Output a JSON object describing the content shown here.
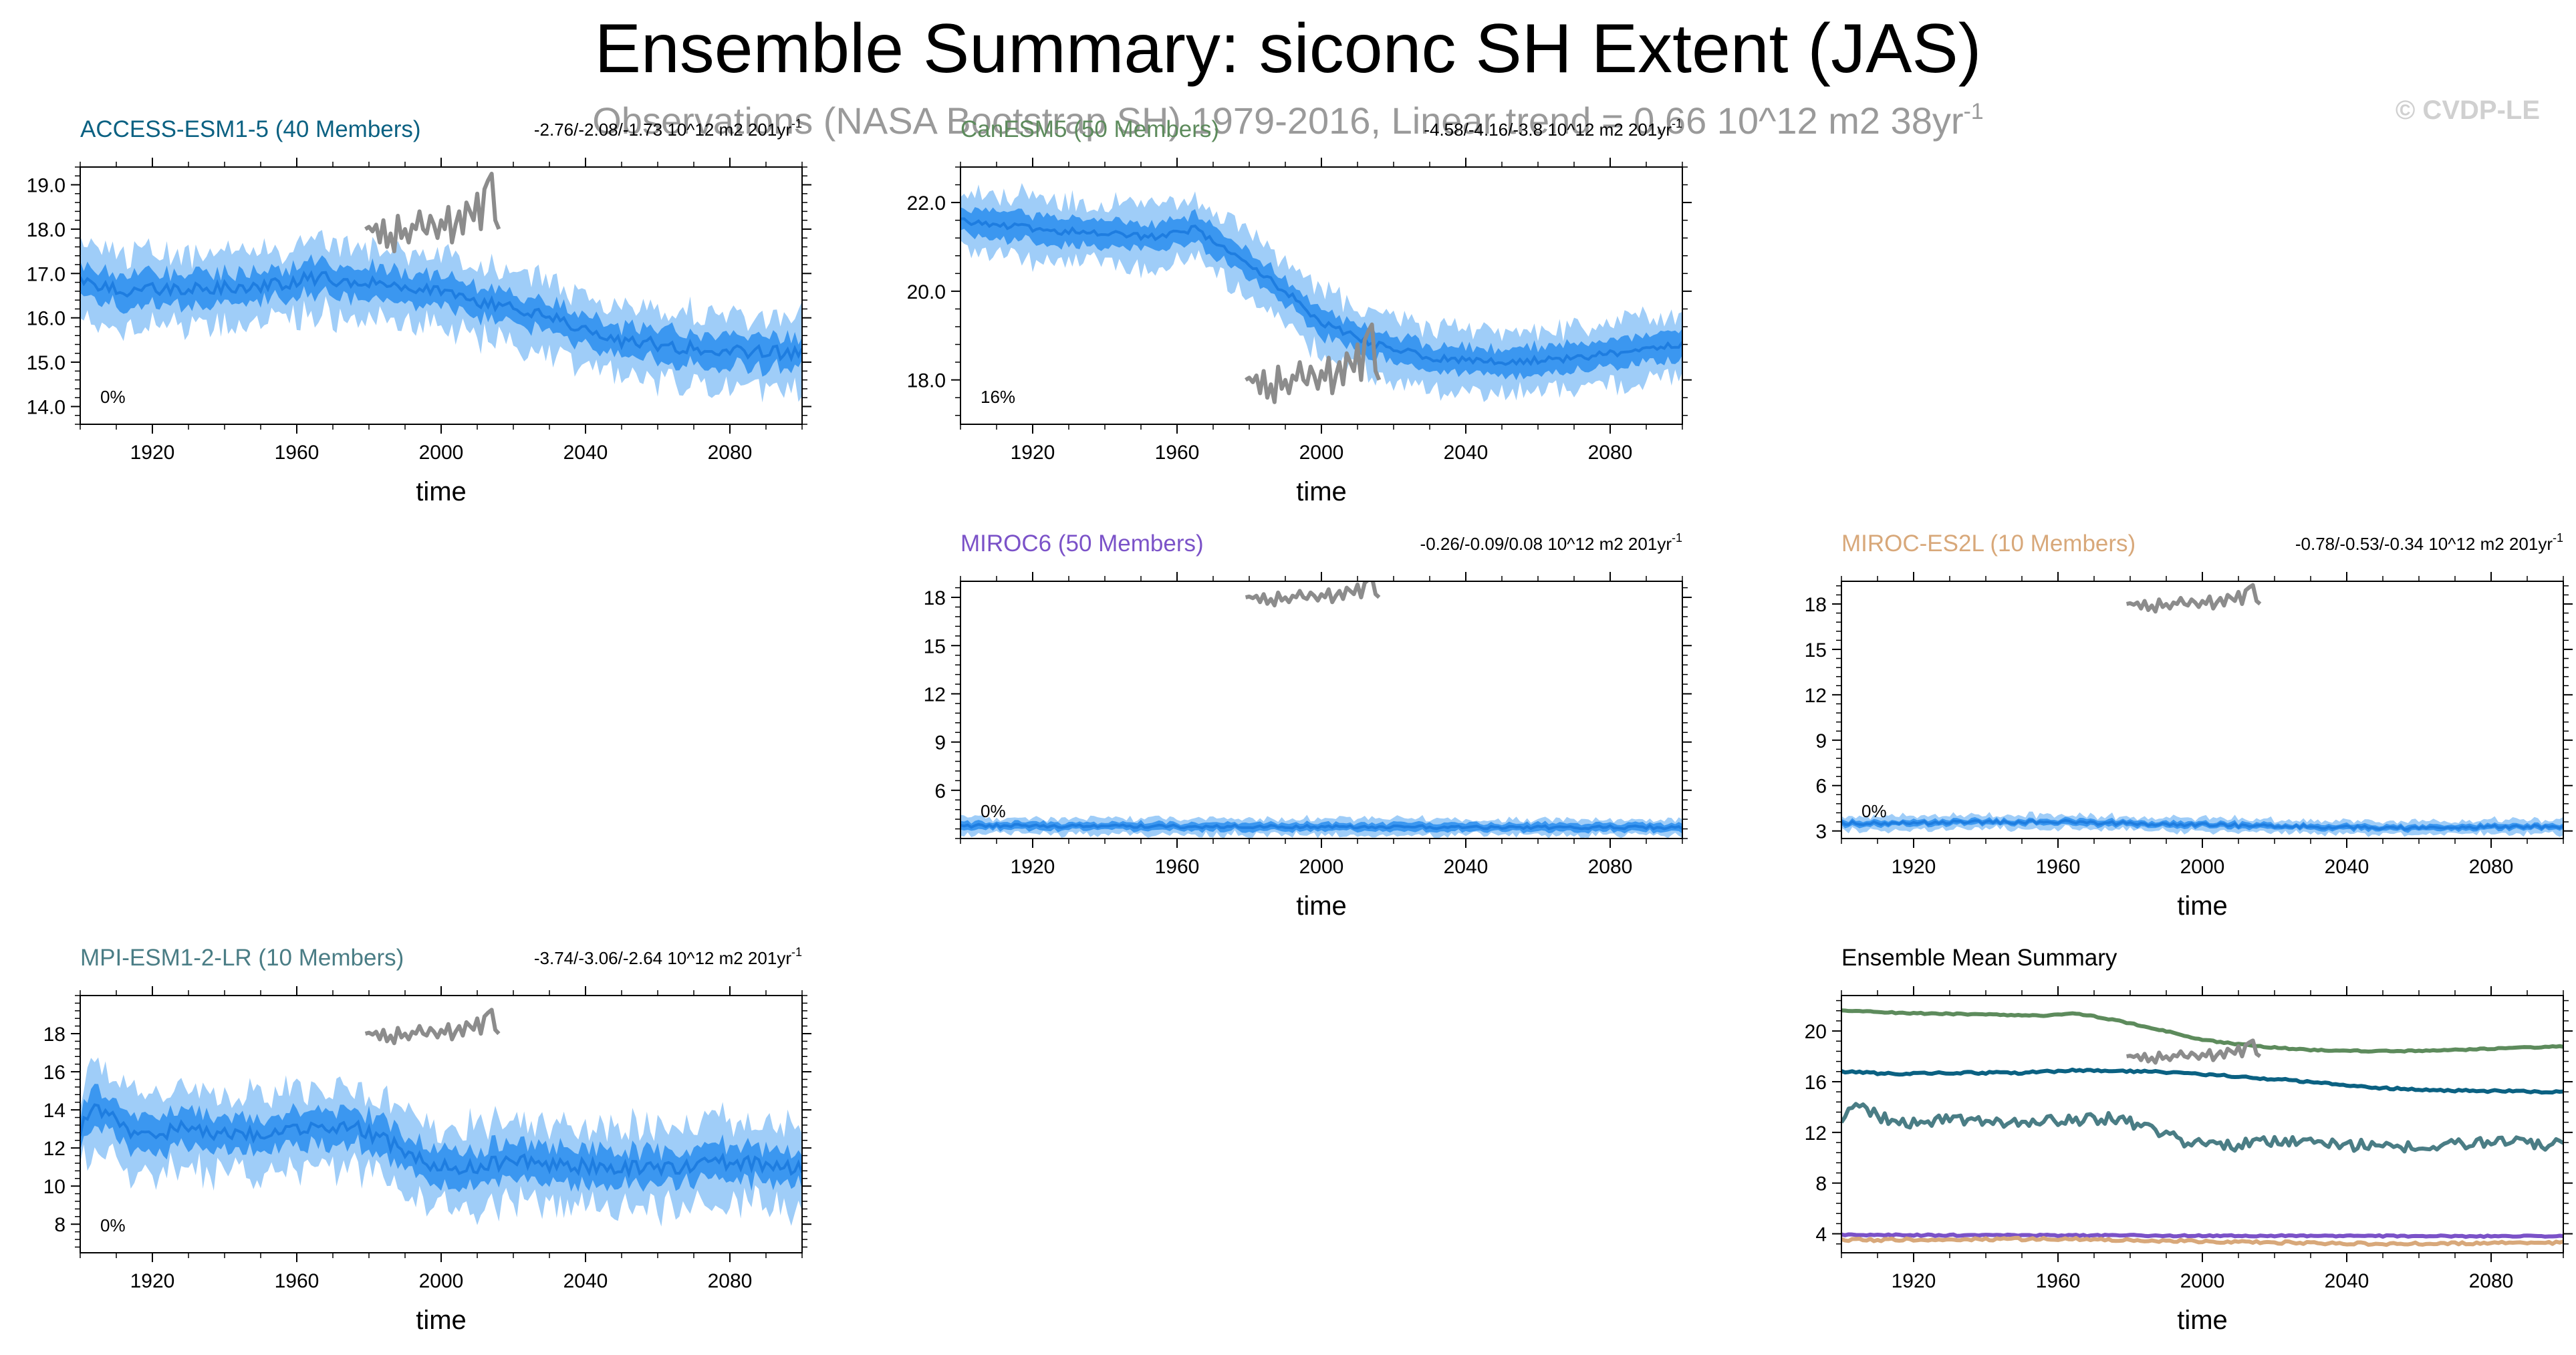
{
  "title": "Ensemble Summary: siconc SH Extent (JAS)",
  "subtitle": "Observations (NASA Bootstrap SH) 1979-2016, Linear trend = 0.66 10^12 m2 38yr",
  "subtitle_sup": "-1",
  "copyright": "© CVDP-LE",
  "colors": {
    "outer_band": "#9fcdf8",
    "inner_band": "#3b97f0",
    "mean_line": "#1e7de0",
    "obs": "#8c8c8c"
  },
  "chart_data": [
    {
      "id": "access",
      "type": "line",
      "title": "ACCESS-ESM1-5 (40 Members)",
      "title_color": "#0b6182",
      "trend_label": "-2.76/-2.08/-1.73 10^12 m2 201yr",
      "trend_sup": "-1",
      "percent_label": "0%",
      "xlabel": "time",
      "xlim": [
        1900,
        2100
      ],
      "xticks": [
        1920,
        1960,
        2000,
        2040,
        2080
      ],
      "xtick_labels": [
        "1920",
        "1960",
        "2000",
        "2040",
        "2080"
      ],
      "ylim": [
        13.6,
        19.4
      ],
      "yticks": [
        14,
        15,
        16,
        17,
        18,
        19
      ],
      "ytick_labels": [
        "14.0",
        "15.0",
        "16.0",
        "17.0",
        "18.0",
        "19.0"
      ],
      "mean_knots": [
        [
          1900,
          16.8
        ],
        [
          1915,
          16.6
        ],
        [
          1930,
          16.7
        ],
        [
          1950,
          16.7
        ],
        [
          1965,
          16.9
        ],
        [
          1985,
          16.8
        ],
        [
          2000,
          16.6
        ],
        [
          2015,
          16.3
        ],
        [
          2030,
          16.0
        ],
        [
          2050,
          15.5
        ],
        [
          2070,
          15.3
        ],
        [
          2100,
          15.2
        ]
      ],
      "noise_amp": 0.15,
      "inner_spread": 0.35,
      "outer_spread": 0.8,
      "obs": {
        "years": [
          1979,
          1980,
          1981,
          1982,
          1983,
          1984,
          1985,
          1986,
          1987,
          1988,
          1989,
          1990,
          1991,
          1992,
          1993,
          1994,
          1995,
          1996,
          1997,
          1998,
          1999,
          2000,
          2001,
          2002,
          2003,
          2004,
          2005,
          2006,
          2007,
          2008,
          2009,
          2010,
          2011,
          2012,
          2013,
          2014,
          2015,
          2016
        ],
        "values": [
          18.0,
          18.05,
          17.95,
          18.1,
          17.7,
          18.2,
          17.6,
          17.9,
          17.5,
          18.3,
          17.8,
          18.0,
          17.7,
          18.1,
          18.0,
          18.4,
          18.0,
          17.9,
          18.3,
          18.1,
          17.8,
          18.2,
          18.0,
          18.5,
          17.7,
          18.1,
          18.4,
          17.9,
          18.6,
          18.4,
          18.2,
          18.8,
          18.0,
          18.9,
          19.1,
          19.25,
          18.2,
          18.0
        ]
      }
    },
    {
      "id": "canesm5",
      "type": "line",
      "title": "CanESM5 (50 Members)",
      "title_color": "#5d8b5c",
      "trend_label": "-4.58/-4.16/-3.8 10^12 m2 201yr",
      "trend_sup": "-1",
      "percent_label": "16%",
      "xlabel": "time",
      "xlim": [
        1900,
        2100
      ],
      "xticks": [
        1920,
        1960,
        2000,
        2040,
        2080
      ],
      "xtick_labels": [
        "1920",
        "1960",
        "2000",
        "2040",
        "2080"
      ],
      "ylim": [
        17.0,
        22.8
      ],
      "yticks": [
        18,
        20,
        22
      ],
      "ytick_labels": [
        "18.0",
        "20.0",
        "22.0"
      ],
      "mean_knots": [
        [
          1900,
          21.6
        ],
        [
          1920,
          21.4
        ],
        [
          1940,
          21.3
        ],
        [
          1955,
          21.2
        ],
        [
          1965,
          21.4
        ],
        [
          1975,
          20.9
        ],
        [
          1990,
          20.0
        ],
        [
          2000,
          19.3
        ],
        [
          2015,
          18.8
        ],
        [
          2030,
          18.5
        ],
        [
          2050,
          18.4
        ],
        [
          2070,
          18.5
        ],
        [
          2090,
          18.7
        ],
        [
          2100,
          18.8
        ]
      ],
      "noise_amp": 0.08,
      "inner_spread": 0.3,
      "outer_spread": 0.7,
      "obs": {
        "years": [
          1979,
          1980,
          1981,
          1982,
          1983,
          1984,
          1985,
          1986,
          1987,
          1988,
          1989,
          1990,
          1991,
          1992,
          1993,
          1994,
          1995,
          1996,
          1997,
          1998,
          1999,
          2000,
          2001,
          2002,
          2003,
          2004,
          2005,
          2006,
          2007,
          2008,
          2009,
          2010,
          2011,
          2012,
          2013,
          2014,
          2015,
          2016
        ],
        "values": [
          18.0,
          18.05,
          17.95,
          18.1,
          17.7,
          18.2,
          17.6,
          17.9,
          17.5,
          18.3,
          17.8,
          18.0,
          17.7,
          18.1,
          18.0,
          18.4,
          18.0,
          17.9,
          18.3,
          18.1,
          17.8,
          18.2,
          18.0,
          18.5,
          17.7,
          18.1,
          18.4,
          17.9,
          18.6,
          18.4,
          18.2,
          18.8,
          18.0,
          18.9,
          19.1,
          19.25,
          18.2,
          18.0
        ]
      }
    },
    {
      "id": "miroc6",
      "type": "line",
      "title": "MIROC6 (50 Members)",
      "title_color": "#7b52c8",
      "trend_label": "-0.26/-0.09/0.08 10^12 m2 201yr",
      "trend_sup": "-1",
      "percent_label": "0%",
      "xlabel": "time",
      "xlim": [
        1900,
        2100
      ],
      "xticks": [
        1920,
        1960,
        2000,
        2040,
        2080
      ],
      "xtick_labels": [
        "1920",
        "1960",
        "2000",
        "2040",
        "2080"
      ],
      "ylim": [
        3.0,
        19.0
      ],
      "yticks": [
        6,
        9,
        12,
        15,
        18
      ],
      "ytick_labels": [
        "6",
        "9",
        "12",
        "15",
        "18"
      ],
      "mean_knots": [
        [
          1900,
          3.8
        ],
        [
          1950,
          3.75
        ],
        [
          2000,
          3.75
        ],
        [
          2050,
          3.7
        ],
        [
          2100,
          3.7
        ]
      ],
      "noise_amp": 0.1,
      "inner_spread": 0.25,
      "outer_spread": 0.5,
      "obs": {
        "years": [
          1979,
          1980,
          1981,
          1982,
          1983,
          1984,
          1985,
          1986,
          1987,
          1988,
          1989,
          1990,
          1991,
          1992,
          1993,
          1994,
          1995,
          1996,
          1997,
          1998,
          1999,
          2000,
          2001,
          2002,
          2003,
          2004,
          2005,
          2006,
          2007,
          2008,
          2009,
          2010,
          2011,
          2012,
          2013,
          2014,
          2015,
          2016
        ],
        "values": [
          18.0,
          18.05,
          17.95,
          18.1,
          17.7,
          18.2,
          17.6,
          17.9,
          17.5,
          18.3,
          17.8,
          18.0,
          17.7,
          18.1,
          18.0,
          18.4,
          18.0,
          17.9,
          18.3,
          18.1,
          17.8,
          18.2,
          18.0,
          18.5,
          17.7,
          18.1,
          18.4,
          17.9,
          18.6,
          18.4,
          18.2,
          18.8,
          18.0,
          18.9,
          19.1,
          19.25,
          18.2,
          18.0
        ]
      }
    },
    {
      "id": "mirocES2L",
      "type": "line",
      "title": "MIROC-ES2L (10 Members)",
      "title_color": "#d8a87a",
      "trend_label": "-0.78/-0.53/-0.34 10^12 m2 201yr",
      "trend_sup": "-1",
      "percent_label": "0%",
      "xlabel": "time",
      "xlim": [
        1900,
        2100
      ],
      "xticks": [
        1920,
        1960,
        2000,
        2040,
        2080
      ],
      "xtick_labels": [
        "1920",
        "1960",
        "2000",
        "2040",
        "2080"
      ],
      "ylim": [
        2.5,
        19.5
      ],
      "yticks": [
        3,
        6,
        9,
        12,
        15,
        18
      ],
      "ytick_labels": [
        "3",
        "6",
        "9",
        "12",
        "15",
        "18"
      ],
      "mean_knots": [
        [
          1900,
          3.5
        ],
        [
          1960,
          3.6
        ],
        [
          2000,
          3.4
        ],
        [
          2050,
          3.2
        ],
        [
          2100,
          3.3
        ]
      ],
      "noise_amp": 0.12,
      "inner_spread": 0.2,
      "outer_spread": 0.45,
      "obs": {
        "years": [
          1979,
          1980,
          1981,
          1982,
          1983,
          1984,
          1985,
          1986,
          1987,
          1988,
          1989,
          1990,
          1991,
          1992,
          1993,
          1994,
          1995,
          1996,
          1997,
          1998,
          1999,
          2000,
          2001,
          2002,
          2003,
          2004,
          2005,
          2006,
          2007,
          2008,
          2009,
          2010,
          2011,
          2012,
          2013,
          2014,
          2015,
          2016
        ],
        "values": [
          18.0,
          18.05,
          17.95,
          18.1,
          17.7,
          18.2,
          17.6,
          17.9,
          17.5,
          18.3,
          17.8,
          18.0,
          17.7,
          18.1,
          18.0,
          18.4,
          18.0,
          17.9,
          18.3,
          18.1,
          17.8,
          18.2,
          18.0,
          18.5,
          17.7,
          18.1,
          18.4,
          17.9,
          18.6,
          18.4,
          18.2,
          18.8,
          18.0,
          18.9,
          19.1,
          19.25,
          18.2,
          18.0
        ]
      }
    },
    {
      "id": "mpi",
      "type": "line",
      "title": "MPI-ESM1-2-LR (10 Members)",
      "title_color": "#4a7d85",
      "trend_label": "-3.74/-3.06/-2.64 10^12 m2 201yr",
      "trend_sup": "-1",
      "percent_label": "0%",
      "xlabel": "time",
      "xlim": [
        1900,
        2100
      ],
      "xticks": [
        1920,
        1960,
        2000,
        2040,
        2080
      ],
      "xtick_labels": [
        "1920",
        "1960",
        "2000",
        "2040",
        "2080"
      ],
      "ylim": [
        6.5,
        20.0
      ],
      "yticks": [
        8,
        10,
        12,
        14,
        16,
        18
      ],
      "ytick_labels": [
        "8",
        "10",
        "12",
        "14",
        "16",
        "18"
      ],
      "mean_knots": [
        [
          1900,
          13.0
        ],
        [
          1905,
          14.2
        ],
        [
          1915,
          12.6
        ],
        [
          1930,
          13.1
        ],
        [
          1945,
          12.6
        ],
        [
          1960,
          12.9
        ],
        [
          1975,
          13.1
        ],
        [
          1985,
          12.4
        ],
        [
          1995,
          11.3
        ],
        [
          2005,
          10.9
        ],
        [
          2020,
          11.3
        ],
        [
          2040,
          11.0
        ],
        [
          2060,
          10.9
        ],
        [
          2080,
          11.3
        ],
        [
          2100,
          11.0
        ]
      ],
      "noise_amp": 0.4,
      "inner_spread": 0.9,
      "outer_spread": 2.1,
      "obs": {
        "years": [
          1979,
          1980,
          1981,
          1982,
          1983,
          1984,
          1985,
          1986,
          1987,
          1988,
          1989,
          1990,
          1991,
          1992,
          1993,
          1994,
          1995,
          1996,
          1997,
          1998,
          1999,
          2000,
          2001,
          2002,
          2003,
          2004,
          2005,
          2006,
          2007,
          2008,
          2009,
          2010,
          2011,
          2012,
          2013,
          2014,
          2015,
          2016
        ],
        "values": [
          18.0,
          18.05,
          17.95,
          18.1,
          17.7,
          18.2,
          17.6,
          17.9,
          17.5,
          18.3,
          17.8,
          18.0,
          17.7,
          18.1,
          18.0,
          18.4,
          18.0,
          17.9,
          18.3,
          18.1,
          17.8,
          18.2,
          18.0,
          18.5,
          17.7,
          18.1,
          18.4,
          17.9,
          18.6,
          18.4,
          18.2,
          18.8,
          18.0,
          18.9,
          19.1,
          19.25,
          18.2,
          18.0
        ]
      }
    },
    {
      "id": "summary",
      "type": "line",
      "title": "Ensemble Mean Summary",
      "title_color": "#000000",
      "xlabel": "time",
      "xlim": [
        1900,
        2100
      ],
      "xticks": [
        1920,
        1960,
        2000,
        2040,
        2080
      ],
      "xtick_labels": [
        "1920",
        "1960",
        "2000",
        "2040",
        "2080"
      ],
      "ylim": [
        2.5,
        22.8
      ],
      "yticks": [
        4,
        8,
        12,
        16,
        20
      ],
      "ytick_labels": [
        "4",
        "8",
        "12",
        "16",
        "20"
      ],
      "series": [
        {
          "name": "CanESM5",
          "color": "#5d8b5c",
          "noise": 0.05,
          "knots": [
            [
              1900,
              21.6
            ],
            [
              1920,
              21.4
            ],
            [
              1940,
              21.3
            ],
            [
              1955,
              21.2
            ],
            [
              1965,
              21.4
            ],
            [
              1975,
              20.9
            ],
            [
              1990,
              20.0
            ],
            [
              2000,
              19.3
            ],
            [
              2015,
              18.8
            ],
            [
              2030,
              18.5
            ],
            [
              2050,
              18.4
            ],
            [
              2070,
              18.5
            ],
            [
              2090,
              18.7
            ],
            [
              2100,
              18.8
            ]
          ]
        },
        {
          "name": "ACCESS-ESM1-5",
          "color": "#0b6182",
          "noise": 0.08,
          "knots": [
            [
              1900,
              16.8
            ],
            [
              1915,
              16.6
            ],
            [
              1930,
              16.7
            ],
            [
              1950,
              16.7
            ],
            [
              1965,
              16.9
            ],
            [
              1985,
              16.8
            ],
            [
              2000,
              16.6
            ],
            [
              2015,
              16.3
            ],
            [
              2030,
              16.0
            ],
            [
              2050,
              15.5
            ],
            [
              2070,
              15.3
            ],
            [
              2100,
              15.2
            ]
          ]
        },
        {
          "name": "MPI-ESM1-2-LR",
          "color": "#4a7d85",
          "noise": 0.45,
          "knots": [
            [
              1900,
              13.0
            ],
            [
              1905,
              14.2
            ],
            [
              1915,
              12.6
            ],
            [
              1930,
              13.1
            ],
            [
              1945,
              12.6
            ],
            [
              1960,
              12.9
            ],
            [
              1975,
              13.1
            ],
            [
              1985,
              12.4
            ],
            [
              1995,
              11.3
            ],
            [
              2005,
              10.9
            ],
            [
              2020,
              11.3
            ],
            [
              2040,
              11.0
            ],
            [
              2060,
              10.9
            ],
            [
              2080,
              11.3
            ],
            [
              2100,
              11.0
            ]
          ]
        },
        {
          "name": "MIROC6",
          "color": "#7b52c8",
          "noise": 0.06,
          "knots": [
            [
              1900,
              3.9
            ],
            [
              2000,
              3.85
            ],
            [
              2100,
              3.8
            ]
          ]
        },
        {
          "name": "MIROC-ES2L",
          "color": "#d8a87a",
          "noise": 0.1,
          "knots": [
            [
              1900,
              3.5
            ],
            [
              1960,
              3.6
            ],
            [
              2000,
              3.4
            ],
            [
              2050,
              3.2
            ],
            [
              2100,
              3.3
            ]
          ]
        }
      ],
      "obs": {
        "years": [
          1979,
          1980,
          1981,
          1982,
          1983,
          1984,
          1985,
          1986,
          1987,
          1988,
          1989,
          1990,
          1991,
          1992,
          1993,
          1994,
          1995,
          1996,
          1997,
          1998,
          1999,
          2000,
          2001,
          2002,
          2003,
          2004,
          2005,
          2006,
          2007,
          2008,
          2009,
          2010,
          2011,
          2012,
          2013,
          2014,
          2015,
          2016
        ],
        "values": [
          18.0,
          18.05,
          17.95,
          18.1,
          17.7,
          18.2,
          17.6,
          17.9,
          17.5,
          18.3,
          17.8,
          18.0,
          17.7,
          18.1,
          18.0,
          18.4,
          18.0,
          17.9,
          18.3,
          18.1,
          17.8,
          18.2,
          18.0,
          18.5,
          17.7,
          18.1,
          18.4,
          17.9,
          18.6,
          18.4,
          18.2,
          18.8,
          18.0,
          18.9,
          19.1,
          19.25,
          18.2,
          18.0
        ]
      }
    }
  ]
}
